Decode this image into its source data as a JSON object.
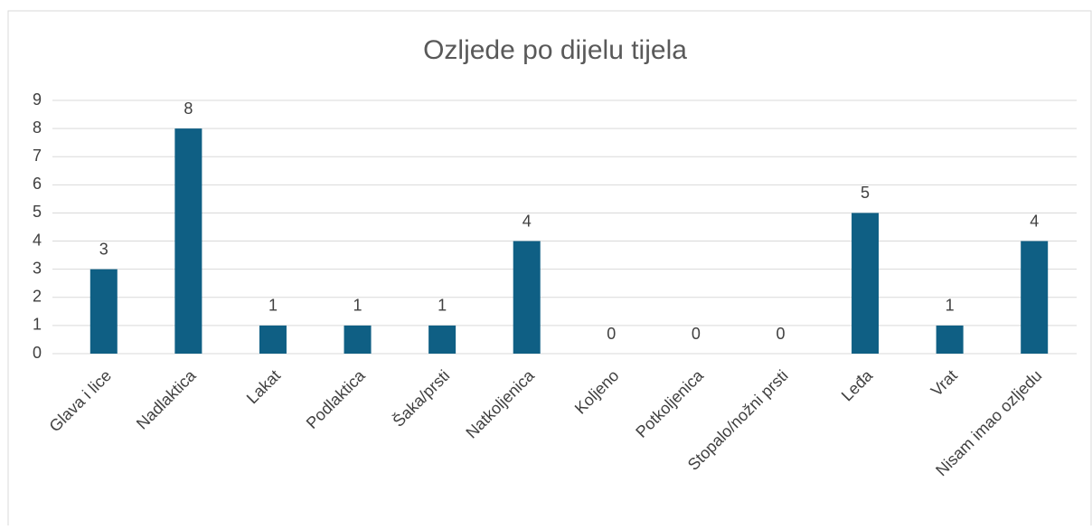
{
  "chart_data": {
    "type": "bar",
    "title": "Ozljede po dijelu tijela",
    "categories": [
      "Glava i lice",
      "Nadlaktica",
      "Lakat",
      "Podlaktica",
      "Šaka/prsti",
      "Natkoljenica",
      "Koljeno",
      "Potkoljenica",
      "Stopalo/nožni prsti",
      "Leđa",
      "Vrat",
      "Nisam imao ozljedu"
    ],
    "values": [
      3,
      8,
      1,
      1,
      1,
      4,
      0,
      0,
      0,
      5,
      1,
      4
    ],
    "color": "#0f5f84",
    "ylim": [
      0,
      9
    ],
    "yticks": [
      0,
      1,
      2,
      3,
      4,
      5,
      6,
      7,
      8,
      9
    ],
    "grid": true
  }
}
